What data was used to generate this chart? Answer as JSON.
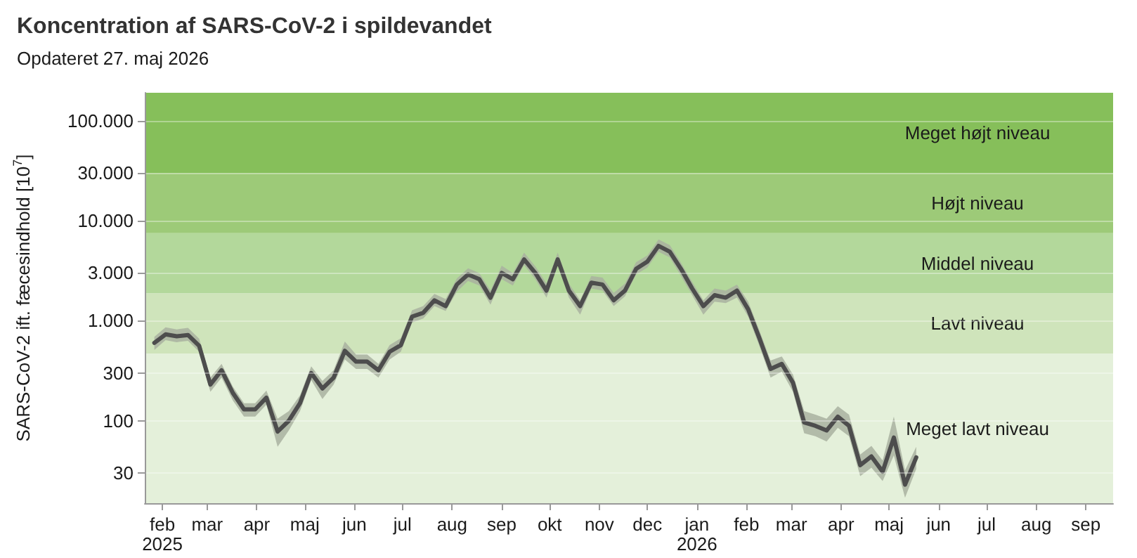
{
  "chart_data": {
    "type": "line",
    "title": "Koncentration af SARS-CoV-2 i spildevandet",
    "subtitle": "Opdateret 27. maj 2026",
    "ylabel": "SARS-CoV-2 ift. fæcesindhold [10$^{7}$]",
    "x": [
      "2025-01-27",
      "2025-02-03",
      "2025-02-10",
      "2025-02-17",
      "2025-02-24",
      "2025-03-03",
      "2025-03-10",
      "2025-03-17",
      "2025-03-24",
      "2025-03-31",
      "2025-04-07",
      "2025-04-14",
      "2025-04-21",
      "2025-04-28",
      "2025-05-05",
      "2025-05-12",
      "2025-05-19",
      "2025-05-26",
      "2025-06-02",
      "2025-06-09",
      "2025-06-16",
      "2025-06-23",
      "2025-06-30",
      "2025-07-07",
      "2025-07-14",
      "2025-07-21",
      "2025-07-28",
      "2025-08-04",
      "2025-08-11",
      "2025-08-18",
      "2025-08-25",
      "2025-09-01",
      "2025-09-08",
      "2025-09-15",
      "2025-09-22",
      "2025-09-29",
      "2025-10-06",
      "2025-10-13",
      "2025-10-20",
      "2025-10-27",
      "2025-11-03",
      "2025-11-10",
      "2025-11-17",
      "2025-11-24",
      "2025-12-01",
      "2025-12-08",
      "2025-12-15",
      "2025-12-22",
      "2025-12-29",
      "2026-01-05",
      "2026-01-12",
      "2026-01-19",
      "2026-01-26",
      "2026-02-02",
      "2026-02-09",
      "2026-02-16",
      "2026-02-23",
      "2026-03-02",
      "2026-03-09",
      "2026-03-16",
      "2026-03-23",
      "2026-03-30",
      "2026-04-06",
      "2026-04-13",
      "2026-04-20",
      "2026-04-27",
      "2026-05-04",
      "2026-05-11",
      "2026-05-18"
    ],
    "series": [
      {
        "color": "#4d4d4d",
        "values": [
          600,
          730,
          700,
          720,
          560,
          230,
          320,
          190,
          130,
          130,
          170,
          78,
          100,
          150,
          300,
          210,
          270,
          500,
          390,
          390,
          320,
          490,
          570,
          1100,
          1200,
          1600,
          1400,
          2300,
          2900,
          2600,
          1700,
          3000,
          2600,
          4100,
          3000,
          2000,
          4100,
          2000,
          1400,
          2400,
          2300,
          1600,
          2000,
          3300,
          3900,
          5600,
          4900,
          3300,
          2100,
          1400,
          1800,
          1700,
          2000,
          1300,
          670,
          330,
          370,
          240,
          96,
          89,
          80,
          110,
          89,
          36,
          44,
          31,
          68,
          23,
          43
        ],
        "lower": [
          510,
          640,
          610,
          630,
          490,
          195,
          270,
          160,
          110,
          110,
          145,
          55,
          80,
          125,
          255,
          165,
          230,
          410,
          330,
          330,
          270,
          410,
          490,
          960,
          1050,
          1400,
          1250,
          1950,
          2500,
          2250,
          1450,
          2600,
          2250,
          3600,
          2600,
          1700,
          3600,
          1700,
          1150,
          2100,
          2000,
          1400,
          1750,
          2900,
          3400,
          4900,
          4300,
          2800,
          1800,
          1150,
          1550,
          1500,
          1700,
          1100,
          560,
          270,
          310,
          195,
          75,
          70,
          62,
          85,
          70,
          28,
          34,
          25,
          45,
          17,
          33
        ],
        "upper": [
          690,
          860,
          820,
          850,
          660,
          270,
          370,
          220,
          150,
          150,
          200,
          105,
          125,
          180,
          350,
          250,
          320,
          620,
          460,
          460,
          370,
          570,
          670,
          1270,
          1400,
          1850,
          1650,
          2650,
          3350,
          3000,
          2000,
          3550,
          3000,
          4800,
          3500,
          2350,
          4800,
          2350,
          1600,
          2800,
          2700,
          1900,
          2350,
          3850,
          4500,
          6500,
          5700,
          3800,
          2450,
          1600,
          2100,
          2000,
          2300,
          1550,
          800,
          400,
          440,
          290,
          125,
          115,
          105,
          140,
          115,
          46,
          56,
          40,
          110,
          32,
          55
        ]
      }
    ],
    "log": "y",
    "xlim": [
      "2025-01-21",
      "2026-09-18"
    ],
    "xticks": [
      {
        "value": "2025-02-01",
        "label": "feb\n2025"
      },
      {
        "value": "2025-03-01",
        "label": "mar"
      },
      {
        "value": "2025-04-01",
        "label": "apr"
      },
      {
        "value": "2025-05-01",
        "label": "maj"
      },
      {
        "value": "2025-06-01",
        "label": "jun"
      },
      {
        "value": "2025-07-01",
        "label": "jul"
      },
      {
        "value": "2025-08-01",
        "label": "aug"
      },
      {
        "value": "2025-09-01",
        "label": "sep"
      },
      {
        "value": "2025-10-01",
        "label": "okt"
      },
      {
        "value": "2025-11-01",
        "label": "nov"
      },
      {
        "value": "2025-12-01",
        "label": "dec"
      },
      {
        "value": "2026-01-01",
        "label": "jan\n2026"
      },
      {
        "value": "2026-02-01",
        "label": "feb"
      },
      {
        "value": "2026-03-01",
        "label": "mar"
      },
      {
        "value": "2026-04-01",
        "label": "apr"
      },
      {
        "value": "2026-05-01",
        "label": "maj"
      },
      {
        "value": "2026-06-01",
        "label": "jun"
      },
      {
        "value": "2026-07-01",
        "label": "jul"
      },
      {
        "value": "2026-08-01",
        "label": "aug"
      },
      {
        "value": "2026-09-01",
        "label": "sep"
      }
    ],
    "ylim": [
      15,
      190000
    ],
    "yticks": [
      30,
      100,
      {
        "value": 300,
        "label": "300"
      },
      {
        "value": 1000,
        "label": "1.000"
      },
      {
        "value": 3000,
        "label": "3.000"
      },
      {
        "value": 10000,
        "label": "10.000"
      },
      {
        "value": 30000,
        "label": "30.000"
      },
      {
        "value": 100000,
        "label": "100.000"
      }
    ],
    "bands": [
      {
        "axis": "y",
        "from": 15,
        "to": 470,
        "label": "Meget lavt niveau",
        "color": "#e4f0da"
      },
      {
        "axis": "y",
        "from": 470,
        "to": 1880,
        "label": "Lavt niveau",
        "color": "#cfe4bb"
      },
      {
        "axis": "y",
        "from": 1880,
        "to": 7500,
        "label": "Middel niveau",
        "color": "#b3d89b"
      },
      {
        "axis": "y",
        "from": 7500,
        "to": 30000,
        "label": "Højt niveau",
        "color": "#9dca78"
      },
      {
        "axis": "y",
        "from": 30000,
        "to": 190000,
        "label": "Meget højt niveau",
        "color": "#86bf5a"
      }
    ],
    "grid": "y",
    "marker": "none"
  }
}
